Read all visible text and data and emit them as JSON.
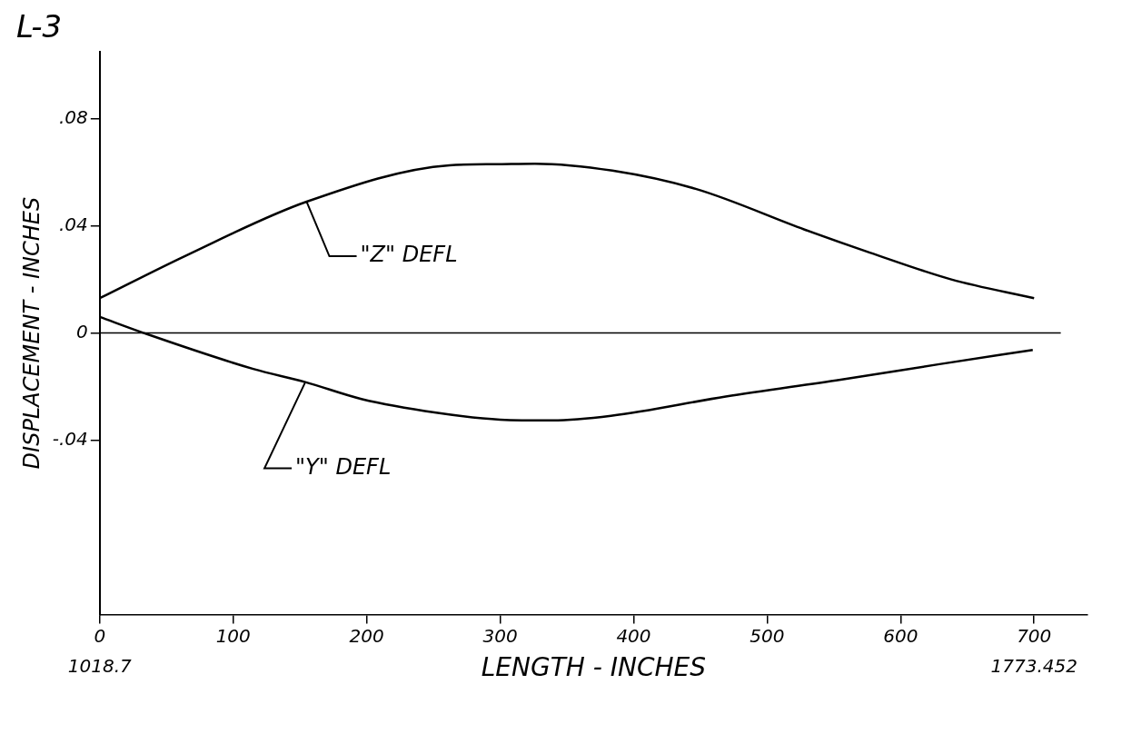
{
  "chart_data": {
    "type": "line",
    "title": "L-3",
    "xlabel": "LENGTH - INCHES",
    "ylabel": "DISPLACEMENT - INCHES",
    "series": [
      {
        "name": "\"Z\" DEFL",
        "color": "#000000",
        "x": [
          0,
          65,
          155,
          262,
          296,
          326,
          384,
          447,
          528,
          577,
          638,
          700
        ],
        "values": [
          0.013,
          0.029,
          0.049,
          0.0626,
          0.063,
          0.0632,
          0.0606,
          0.0537,
          0.0386,
          0.03,
          0.02,
          0.013
        ]
      },
      {
        "name": "\"Y\" DEFL",
        "color": "#000000",
        "x": [
          0,
          33,
          115,
          154,
          196,
          252,
          300,
          339,
          383,
          469,
          555,
          628,
          699
        ],
        "values": [
          0.006,
          0,
          -0.0134,
          -0.0183,
          -0.0246,
          -0.0297,
          -0.0323,
          -0.0326,
          -0.0309,
          -0.0237,
          -0.0174,
          -0.0117,
          -0.0063
        ]
      }
    ],
    "xlim": [
      0,
      740
    ],
    "xticks": [
      0,
      100,
      200,
      300,
      400,
      500,
      600,
      700
    ],
    "ylim": [
      -0.105,
      0.105
    ],
    "yticks": [
      {
        "value": 0.08,
        "label": ".08"
      },
      {
        "value": 0.04,
        "label": ".04"
      },
      0,
      {
        "value": -0.04,
        "label": "-.04"
      }
    ],
    "ref_lines": [
      {
        "axis": "y",
        "value": 0,
        "color": "#000000"
      }
    ],
    "annotations": [
      "1018.7",
      "1773.452"
    ],
    "grid": false,
    "legend": false,
    "marker": "none",
    "line_style": "solid"
  }
}
